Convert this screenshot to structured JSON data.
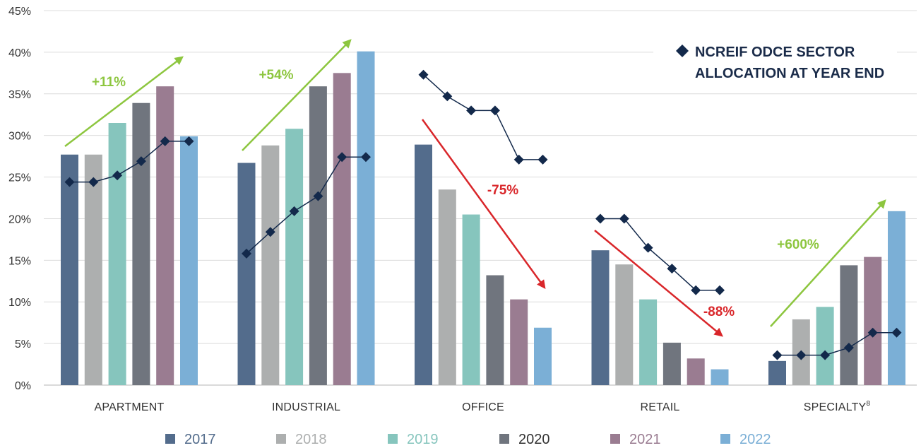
{
  "chart_data": {
    "type": "bar",
    "categories": [
      "APARTMENT",
      "INDUSTRIAL",
      "OFFICE",
      "RETAIL",
      "SPECIALTY"
    ],
    "category_superscripts": [
      "",
      "",
      "",
      "",
      "8"
    ],
    "y_ticks": [
      "0%",
      "5%",
      "10%",
      "15%",
      "20%",
      "25%",
      "30%",
      "35%",
      "40%",
      "45%"
    ],
    "ylim": [
      0,
      45
    ],
    "grid": true,
    "series": [
      {
        "name": "2017",
        "color": "#536c8c",
        "values": [
          27.7,
          26.7,
          28.9,
          16.2,
          2.9
        ]
      },
      {
        "name": "2018",
        "color": "#adafaf",
        "values": [
          27.7,
          28.8,
          23.5,
          14.5,
          7.9
        ]
      },
      {
        "name": "2019",
        "color": "#86c5bd",
        "values": [
          31.5,
          30.8,
          20.5,
          10.3,
          9.4
        ]
      },
      {
        "name": "2020",
        "color": "#70757e",
        "values": [
          33.9,
          35.9,
          13.2,
          5.1,
          14.4
        ]
      },
      {
        "name": "2021",
        "color": "#9a7c91",
        "values": [
          35.9,
          37.5,
          10.3,
          3.2,
          15.4
        ]
      },
      {
        "name": "2022",
        "color": "#7bafd6",
        "values": [
          29.9,
          40.1,
          6.9,
          1.9,
          20.9
        ]
      }
    ],
    "line_series": {
      "name_lines": [
        "NCREIF ODCE SECTOR",
        "ALLOCATION AT YEAR END"
      ],
      "color": "#13294b",
      "values": [
        [
          24.4,
          24.4,
          25.2,
          26.9,
          29.3,
          29.3
        ],
        [
          15.8,
          18.4,
          20.9,
          22.7,
          27.4,
          27.4
        ],
        [
          37.3,
          34.7,
          33.0,
          33.0,
          27.1,
          27.1
        ],
        [
          20.0,
          20.0,
          16.5,
          14.0,
          11.4,
          11.4
        ],
        [
          3.6,
          3.6,
          3.6,
          4.5,
          6.3,
          6.3
        ]
      ]
    },
    "annotations": [
      {
        "category": "APARTMENT",
        "text": "+11%",
        "direction": "up",
        "color": "#8dc63f"
      },
      {
        "category": "INDUSTRIAL",
        "text": "+54%",
        "direction": "up",
        "color": "#8dc63f"
      },
      {
        "category": "OFFICE",
        "text": "-75%",
        "direction": "down",
        "color": "#d9262a"
      },
      {
        "category": "RETAIL",
        "text": "-88%",
        "direction": "down",
        "color": "#d9262a"
      },
      {
        "category": "SPECIALTY",
        "text": "+600%",
        "direction": "up",
        "color": "#8dc63f"
      }
    ],
    "legend_position": "bottom"
  }
}
